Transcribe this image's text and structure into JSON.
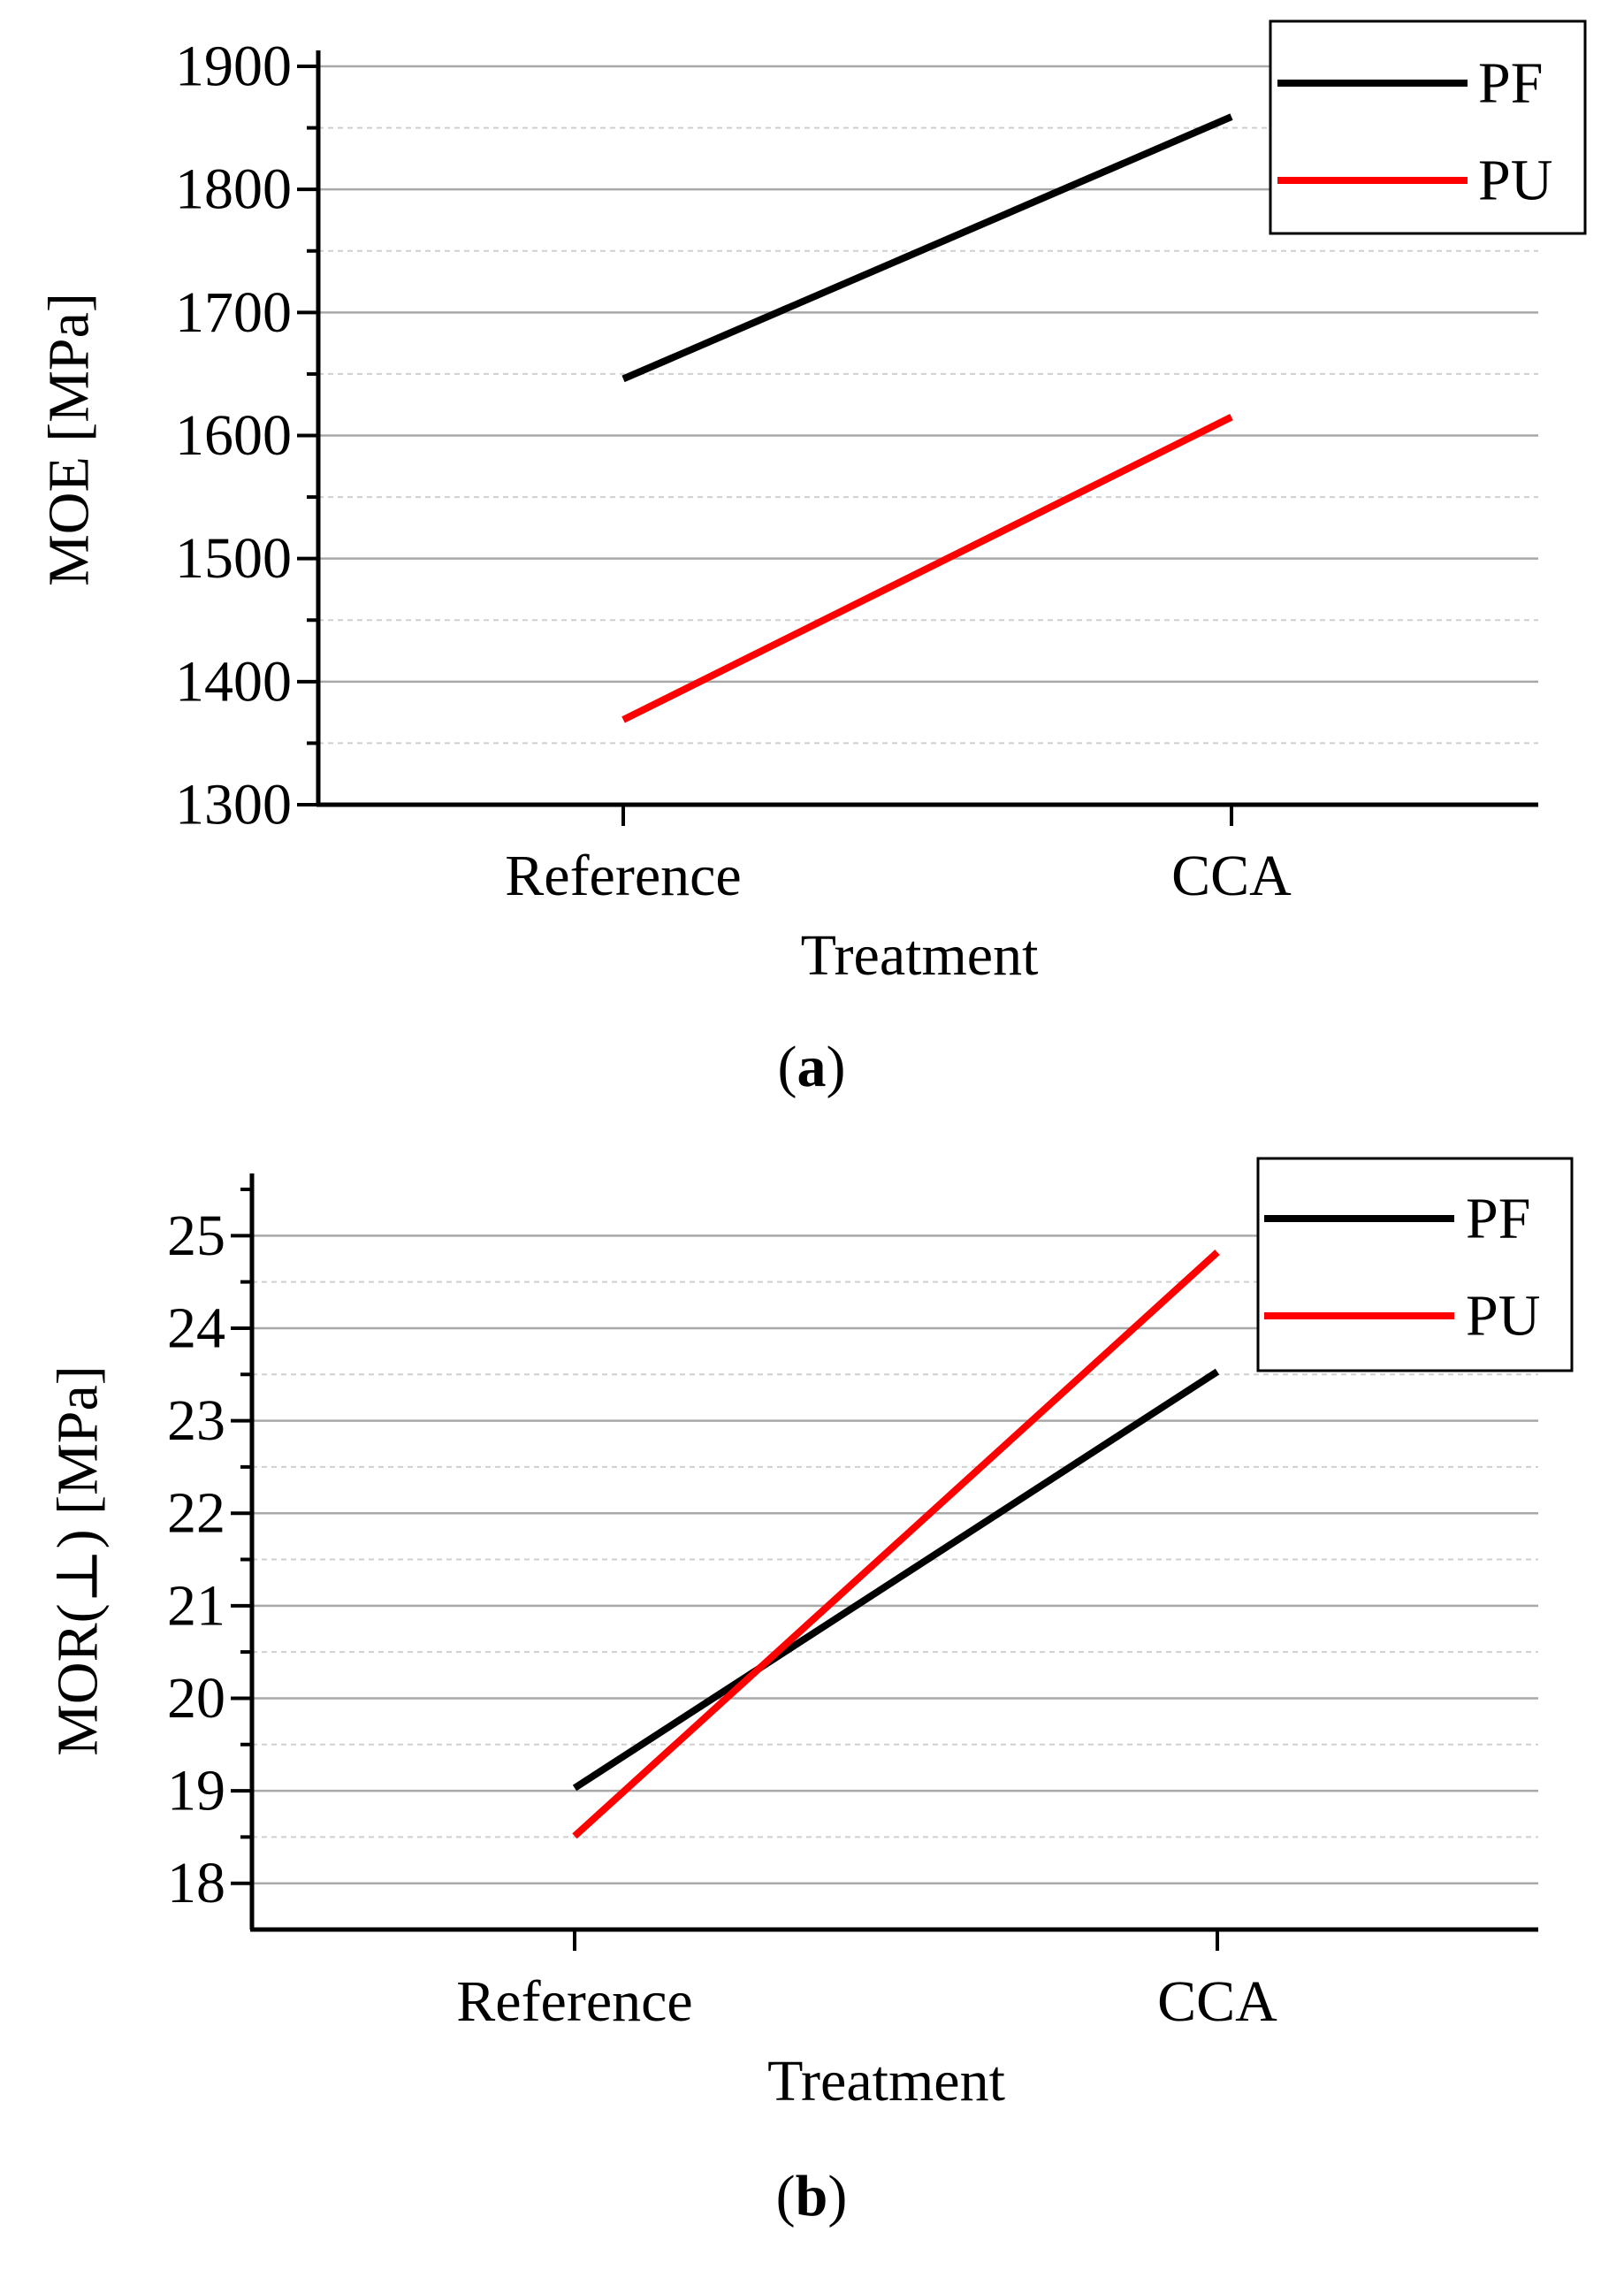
{
  "chart_data": [
    {
      "type": "line",
      "panel_label": "a",
      "title": "",
      "xlabel": "Treatment",
      "ylabel": "MOE [MPa]",
      "categories": [
        "Reference",
        "CCA"
      ],
      "ylim": [
        1300,
        1900
      ],
      "y_ticks": [
        1300,
        1400,
        1500,
        1600,
        1700,
        1800,
        1900
      ],
      "grid": true,
      "legend_position": "top-right",
      "series": [
        {
          "name": "PF",
          "color": "#000000",
          "values": [
            1646,
            1859
          ]
        },
        {
          "name": "PU",
          "color": "#ff0000",
          "values": [
            1369,
            1615
          ]
        }
      ]
    },
    {
      "type": "line",
      "panel_label": "b",
      "title": "",
      "xlabel": "Treatment",
      "ylabel": "MOR(⊥) [MPa]",
      "categories": [
        "Reference",
        "CCA"
      ],
      "ylim": [
        17.5,
        25.5
      ],
      "y_ticks": [
        18,
        19,
        20,
        21,
        22,
        23,
        24,
        25
      ],
      "grid": true,
      "legend_position": "top-right",
      "series": [
        {
          "name": "PF",
          "color": "#000000",
          "values": [
            19.03,
            23.53
          ]
        },
        {
          "name": "PU",
          "color": "#ff0000",
          "values": [
            18.51,
            24.82
          ]
        }
      ]
    }
  ]
}
